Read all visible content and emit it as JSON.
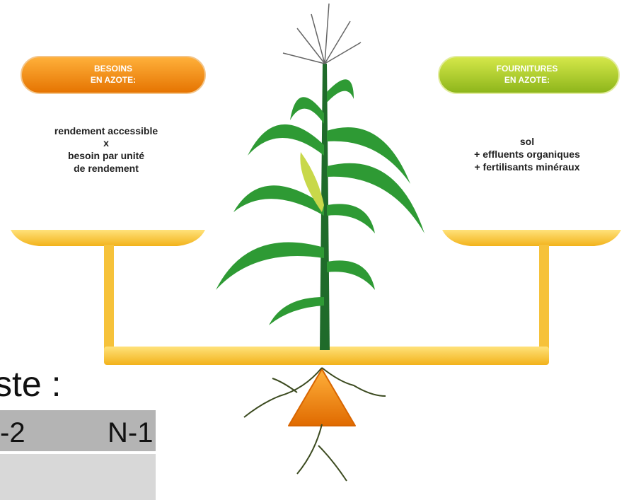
{
  "left": {
    "title": [
      "BESOINS",
      "EN AZOTE:"
    ],
    "lines": [
      "rendement accessible",
      "x",
      "besoin par unité",
      "de rendement"
    ]
  },
  "right": {
    "title": [
      "FOURNITURES",
      "EN AZOTE:"
    ],
    "lines": [
      "sol",
      "+ effluents organiques",
      "+ fertilisants minéraux"
    ]
  },
  "slide_text": "ste :",
  "table": {
    "header": [
      "-2",
      "N-1"
    ]
  }
}
